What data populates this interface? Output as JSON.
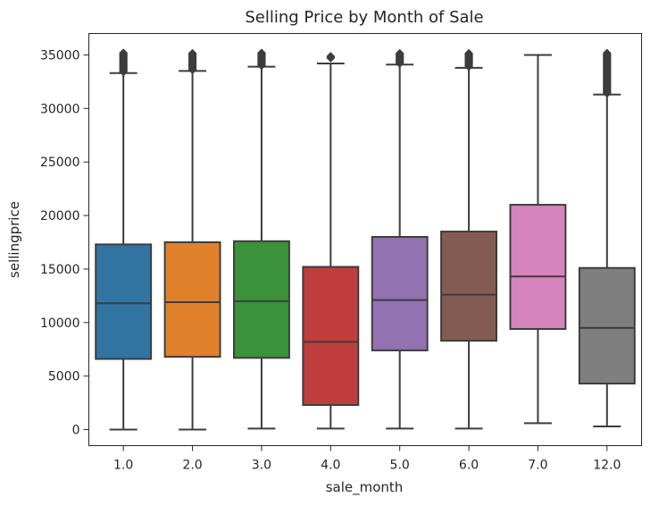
{
  "chart_data": {
    "type": "box",
    "title": "Selling Price by Month of Sale",
    "xlabel": "sale_month",
    "ylabel": "sellingprice",
    "ylim": [
      -1500,
      37000
    ],
    "yticks": [
      0,
      5000,
      10000,
      15000,
      20000,
      25000,
      30000,
      35000
    ],
    "grid": false,
    "categories": [
      "1.0",
      "2.0",
      "3.0",
      "4.0",
      "5.0",
      "6.0",
      "7.0",
      "12.0"
    ],
    "colors": [
      "#3274a1",
      "#e1812c",
      "#3a923a",
      "#c03d3e",
      "#9372b2",
      "#845b53",
      "#d684bd",
      "#7f7f7f"
    ],
    "boxes": [
      {
        "category": "1.0",
        "whisker_low": 0,
        "q1": 6600,
        "median": 11800,
        "q3": 17300,
        "whisker_high": 33300,
        "outliers_from": 33400,
        "outliers_to": 35200
      },
      {
        "category": "2.0",
        "whisker_low": 0,
        "q1": 6800,
        "median": 11900,
        "q3": 17500,
        "whisker_high": 33500,
        "outliers_from": 33600,
        "outliers_to": 35200
      },
      {
        "category": "3.0",
        "whisker_low": 100,
        "q1": 6700,
        "median": 12000,
        "q3": 17600,
        "whisker_high": 33900,
        "outliers_from": 34000,
        "outliers_to": 35200
      },
      {
        "category": "4.0",
        "whisker_low": 100,
        "q1": 2300,
        "median": 8200,
        "q3": 15200,
        "whisker_high": 34200,
        "outliers_from": 34700,
        "outliers_to": 34900
      },
      {
        "category": "5.0",
        "whisker_low": 100,
        "q1": 7400,
        "median": 12100,
        "q3": 18000,
        "whisker_high": 34100,
        "outliers_from": 34200,
        "outliers_to": 35200
      },
      {
        "category": "6.0",
        "whisker_low": 100,
        "q1": 8300,
        "median": 12600,
        "q3": 18500,
        "whisker_high": 33800,
        "outliers_from": 33900,
        "outliers_to": 35200
      },
      {
        "category": "7.0",
        "whisker_low": 600,
        "q1": 9400,
        "median": 14300,
        "q3": 21000,
        "whisker_high": 35000,
        "outliers_from": null,
        "outliers_to": null
      },
      {
        "category": "12.0",
        "whisker_low": 300,
        "q1": 4300,
        "median": 9500,
        "q3": 15100,
        "whisker_high": 31300,
        "outliers_from": 31400,
        "outliers_to": 35200
      }
    ]
  }
}
